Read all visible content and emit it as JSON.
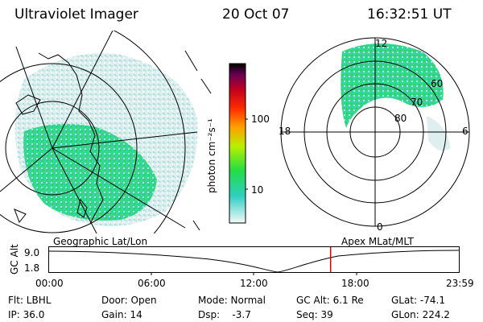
{
  "header": {
    "instrument": "Ultraviolet Imager",
    "date": "20 Oct 07",
    "time": "16:32:51 UT"
  },
  "left_panel": {
    "label": "Geographic Lat/Lon"
  },
  "right_panel": {
    "label": "Apex  MLat/MLT",
    "mlt_labels": {
      "top": "12",
      "left": "18",
      "right": "6",
      "bottom": "0"
    },
    "lat_labels": [
      "60",
      "70",
      "80"
    ]
  },
  "colorbar": {
    "unit_label": "photon cm⁻²s⁻¹",
    "ticks": [
      "100",
      "10"
    ],
    "colors": [
      "#f4f8f8",
      "#2ecfc2",
      "#22dd44",
      "#b8f000",
      "#ffa000",
      "#ff2a00",
      "#c00020",
      "#6a0055",
      "#000000"
    ]
  },
  "timeline": {
    "y_axis_label": "GC Alt",
    "y_ticks": [
      "9.0",
      "1.8"
    ],
    "x_ticks": [
      "00:00",
      "06:00",
      "12:00",
      "18:00",
      "23:59"
    ],
    "cursor_fraction": 0.687,
    "cursor_color": "#cc0000"
  },
  "status": {
    "filter": "Flt: LBHL",
    "ip": "IP: 36.0",
    "door": "Door: Open",
    "gain": "Gain: 14",
    "mode": "Mode: Normal",
    "dsp": "Dsp:    -3.7",
    "gc_alt": "GC Alt: 6.1 Re",
    "seq": "Seq: 39",
    "glat": "GLat: -74.1",
    "glon": "GLon: 224.2"
  }
}
